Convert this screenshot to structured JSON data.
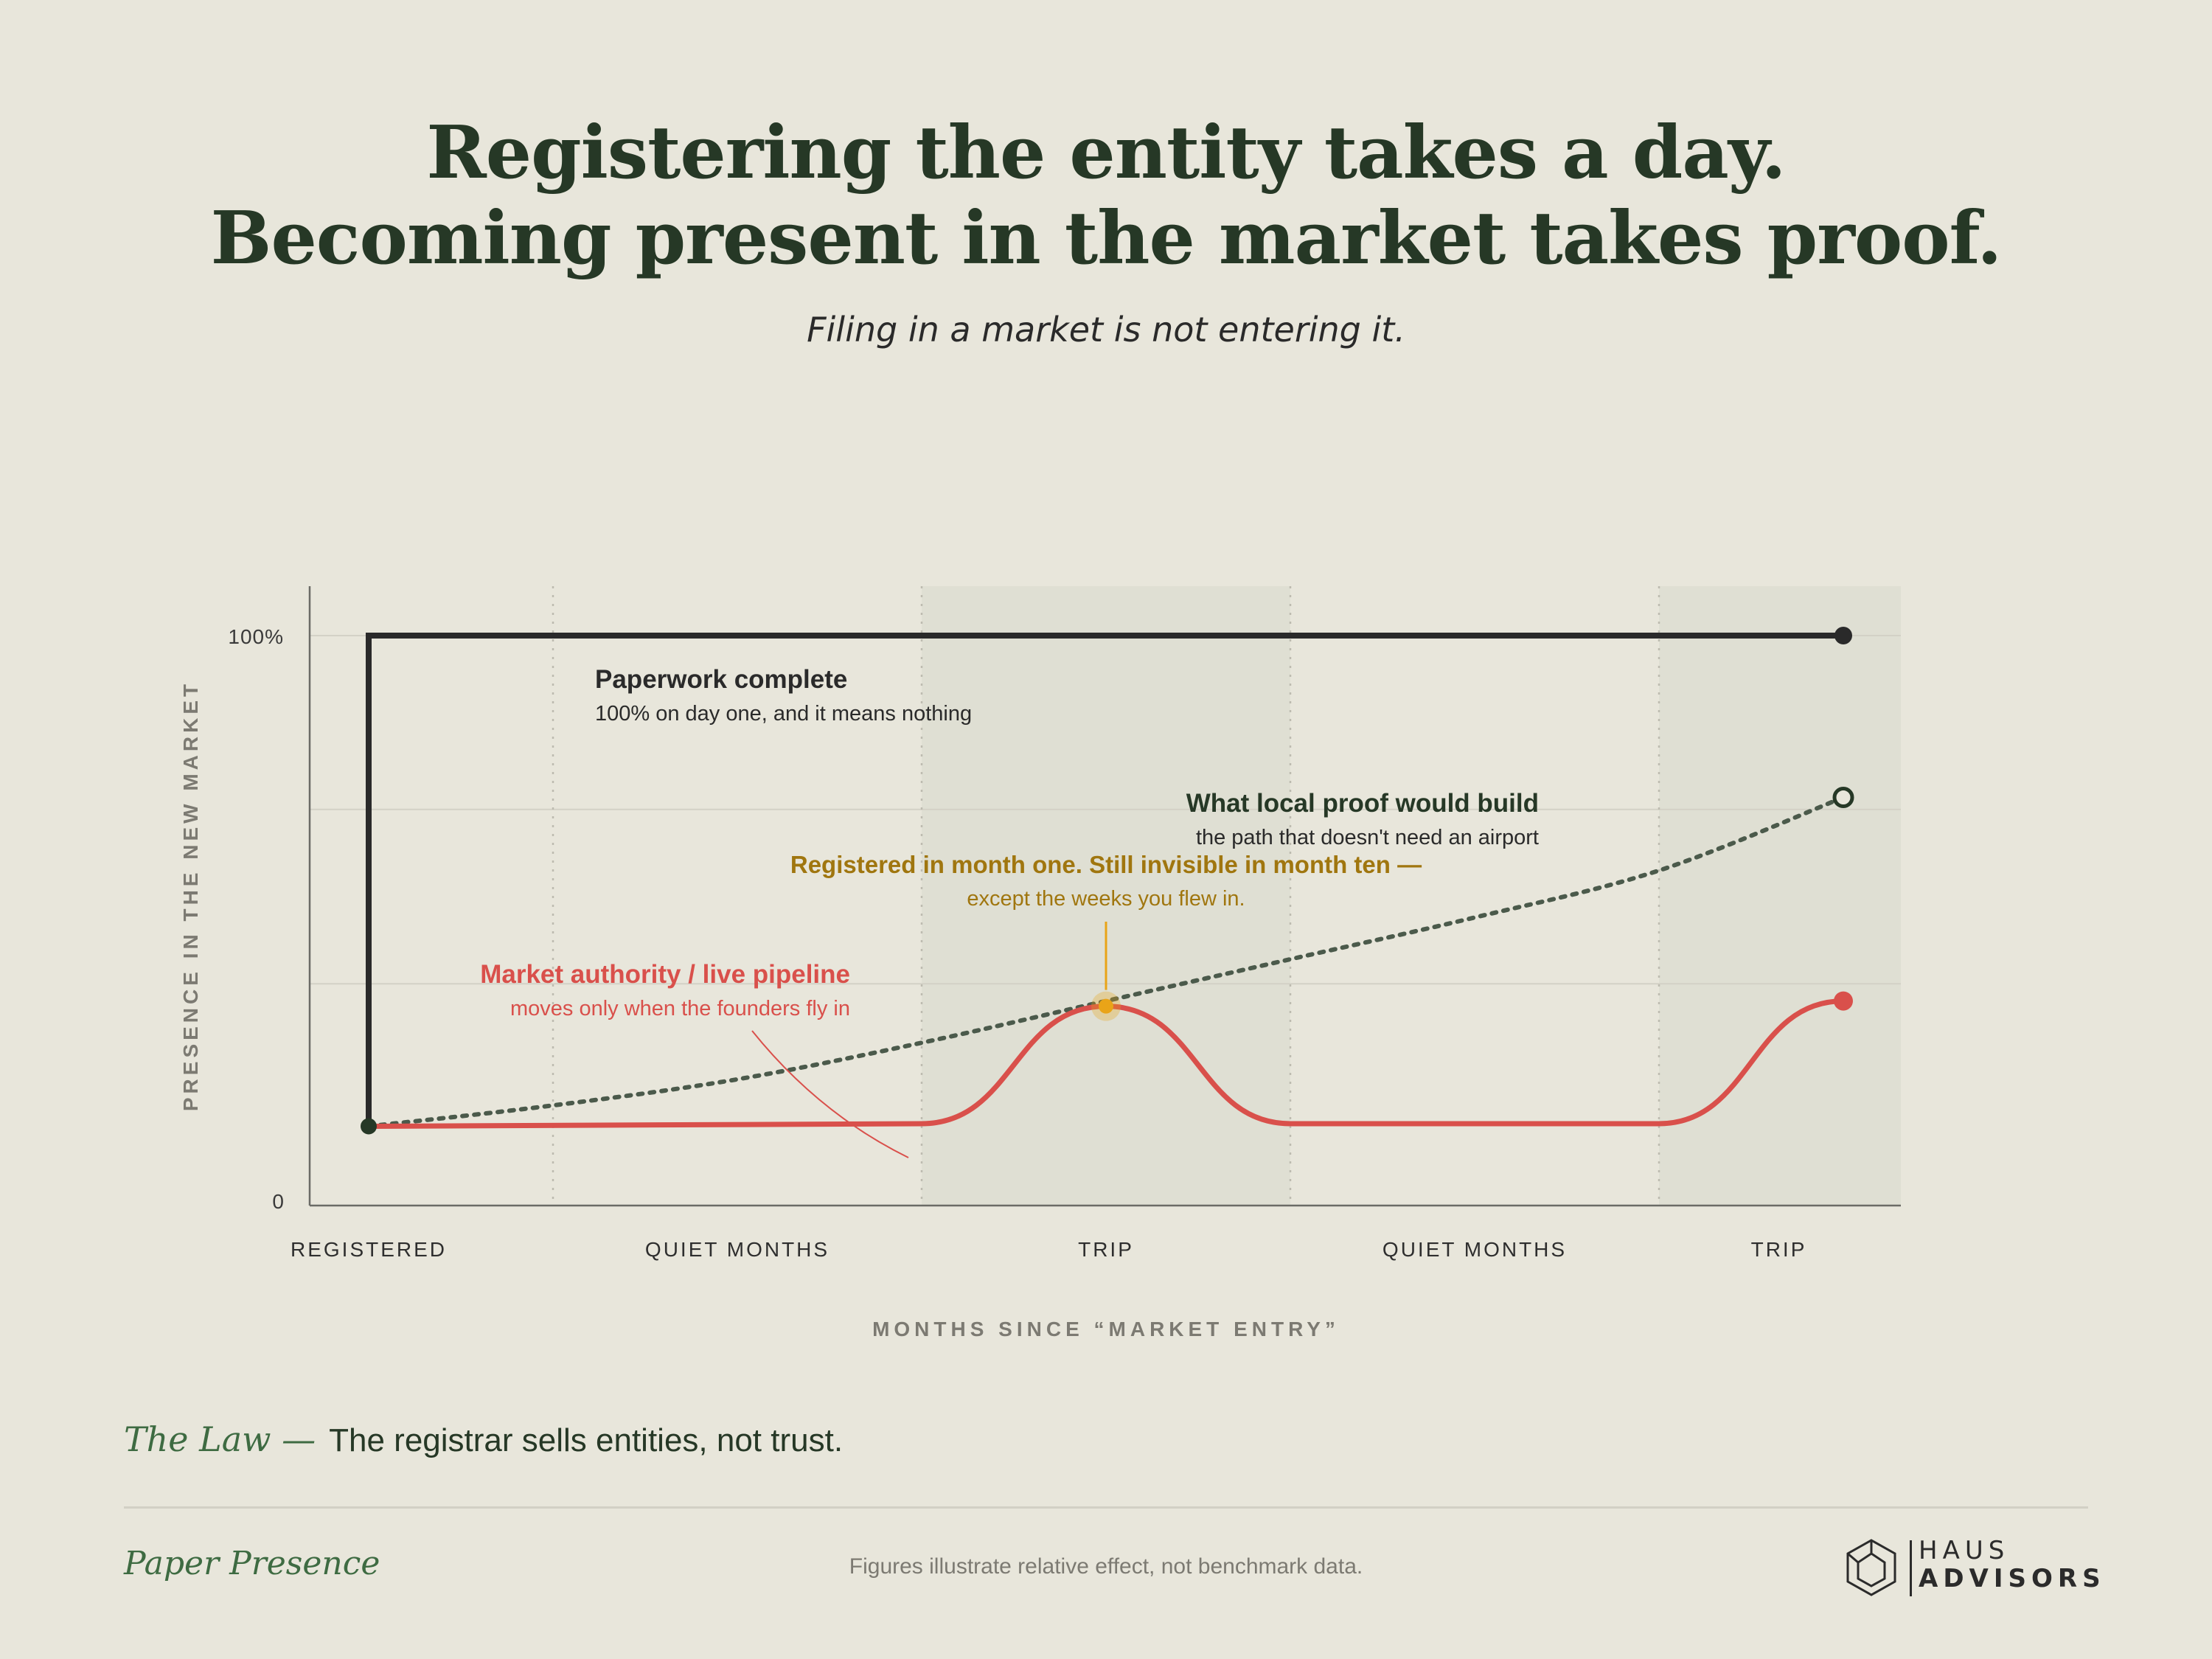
{
  "header": {
    "headline_line1": "Registering the entity takes a day.",
    "headline_line2": "Becoming present in the market takes proof.",
    "subtitle": "Filing in a market is not entering it."
  },
  "chart_data": {
    "type": "line",
    "ylabel": "PRESENCE IN THE NEW MARKET",
    "xlabel": "MONTHS SINCE “MARKET ENTRY”",
    "y_ticks": [
      "100%",
      "0"
    ],
    "ylim": [
      0,
      100
    ],
    "xlim": [
      0,
      10
    ],
    "x_categories": [
      {
        "label": "REGISTERED",
        "x": 0
      },
      {
        "label": "QUIET MONTHS",
        "x": 2
      },
      {
        "label": "TRIP",
        "x": 4
      },
      {
        "label": "QUIET MONTHS",
        "x": 6
      },
      {
        "label": "TRIP",
        "x": 7.65
      }
    ],
    "shaded_ranges": [
      [
        3,
        5
      ],
      [
        7,
        8.35
      ]
    ],
    "series": [
      {
        "key": "paperwork",
        "color": "#2a2a2a",
        "style": "solid",
        "points": [
          [
            0,
            6
          ],
          [
            0,
            100
          ],
          [
            8,
            100
          ]
        ]
      },
      {
        "key": "local_proof",
        "color": "#4b5a4b",
        "style": "dotted",
        "points": [
          [
            0,
            6
          ],
          [
            1,
            10
          ],
          [
            2,
            15
          ],
          [
            3,
            22
          ],
          [
            4,
            30
          ],
          [
            5,
            38
          ],
          [
            6,
            46
          ],
          [
            7,
            55
          ],
          [
            8,
            69
          ]
        ]
      },
      {
        "key": "market_authority",
        "color": "#d9504b",
        "style": "solid",
        "points": [
          [
            0,
            6
          ],
          [
            3,
            6.5
          ],
          [
            3.15,
            7
          ],
          [
            4,
            29
          ],
          [
            4.85,
            7
          ],
          [
            5,
            6.5
          ],
          [
            7,
            6.5
          ],
          [
            7.15,
            7
          ],
          [
            8,
            30
          ]
        ]
      }
    ],
    "annotations": {
      "paperwork": {
        "title": "Paperwork complete",
        "sub": "100% on day one, and it means nothing"
      },
      "local_proof": {
        "title": "What local proof would build",
        "sub": "the path that doesn't need an airport"
      },
      "registered": {
        "title": "Registered in month one. Still invisible in month ten —",
        "sub": "except the weeks you flew in."
      },
      "market_authority": {
        "title": "Market authority / live pipeline",
        "sub": "moves only when the founders fly in"
      }
    },
    "grid": true
  },
  "colors": {
    "background": "#e8e6db",
    "shade": "#dfdfd3",
    "ink": "#263826",
    "red": "#d9504b",
    "gold": "#a0760f",
    "marker_gold": "#e9a418"
  },
  "footer": {
    "law_label": "The Law —",
    "law_text": "The registrar sells entities, not trust.",
    "brand_name": "Paper Presence",
    "disclaimer": "Figures illustrate relative effect, not benchmark data.",
    "logo_line1": "HAUS",
    "logo_line2": "ADVISORS"
  }
}
